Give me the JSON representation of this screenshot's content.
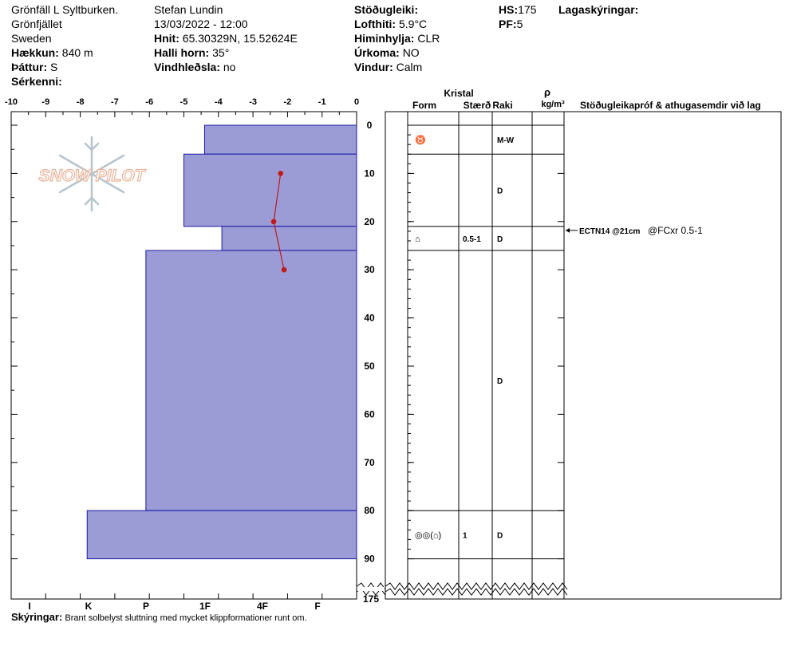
{
  "header": {
    "location": "Grönfäll L Syltburken.",
    "area": "Grönfjället",
    "country": "Sweden",
    "elevation_label": "Hækkun:",
    "elevation": "840 m",
    "aspect_label": "Þáttur:",
    "aspect": "S",
    "specifics_label": "Sérkenni:",
    "observer": "Stefan Lundin",
    "datetime": "13/03/2022 - 12:00",
    "coords_label": "Hnit:",
    "coords": "65.30329N, 15.52624E",
    "slope_label": "Halli horn:",
    "slope": "35°",
    "wind_loading_label": "Vindhleðsla:",
    "wind_loading": "no",
    "stability_label": "Stöðugleiki:",
    "airtemp_label": "Lofthiti:",
    "airtemp": "5.9°C",
    "sky_label": "Himinhylja:",
    "sky": "CLR",
    "precip_label": "Úrkoma:",
    "precip": "NO",
    "wind_label": "Vindur:",
    "wind": "Calm",
    "hs_label": "HS:",
    "hs": "175",
    "pf_label": "PF:",
    "pf": "5",
    "layer_notes_label": "Lagaskýringar:"
  },
  "footer": {
    "notes_label": "Skýringar:",
    "notes": "Brant solbelyst sluttning med mycket klippformationer runt om."
  },
  "logo": {
    "text": "SNOW PILOT"
  },
  "chart_data": {
    "type": "snow-profile",
    "temperature_axis": {
      "ticks": [
        "-10",
        "-9",
        "-8",
        "-7",
        "-6",
        "-5",
        "-4",
        "-3",
        "-2",
        "-1",
        "0"
      ],
      "range": [
        -10,
        0
      ]
    },
    "hardness_axis": {
      "ticks": [
        "I",
        "K",
        "P",
        "1F",
        "4F",
        "F"
      ]
    },
    "depth_axis": {
      "ticks": [
        "0",
        "10",
        "20",
        "30",
        "40",
        "50",
        "60",
        "70",
        "80",
        "90"
      ],
      "bottom_label": "175",
      "range_cm": [
        0,
        90
      ]
    },
    "column_headers": {
      "crystal": "Kristal",
      "form": "Form",
      "size": "Stærð",
      "moisture": "Raki",
      "density_symbol": "ρ",
      "density_unit": "kg/m³",
      "comments": "Stöðugleikapróf & athugasemdir við lag"
    },
    "layers": [
      {
        "top": 0,
        "bottom": 6,
        "hardness": 4.4,
        "form": "♉",
        "size": "",
        "moisture": "M-W"
      },
      {
        "top": 6,
        "bottom": 21,
        "hardness": 5.0,
        "form": "",
        "size": "",
        "moisture": "D"
      },
      {
        "top": 21,
        "bottom": 26,
        "hardness": 3.9,
        "form": "⌂",
        "size": "0.5-1",
        "moisture": "D"
      },
      {
        "top": 26,
        "bottom": 80,
        "hardness": 6.1,
        "form": "",
        "size": "",
        "moisture": "D"
      },
      {
        "top": 80,
        "bottom": 90,
        "hardness": 7.8,
        "form": "◎◎(⌂)",
        "size": "1",
        "moisture": "D"
      }
    ],
    "temperatures": [
      {
        "depth": 10,
        "temp": -2.2
      },
      {
        "depth": 20,
        "temp": -2.4
      },
      {
        "depth": 30,
        "temp": -2.1
      }
    ],
    "stability_tests": [
      {
        "depth": 21,
        "test": "ECTN14 @21cm",
        "detail": "@FCxr 0.5-1"
      }
    ]
  }
}
